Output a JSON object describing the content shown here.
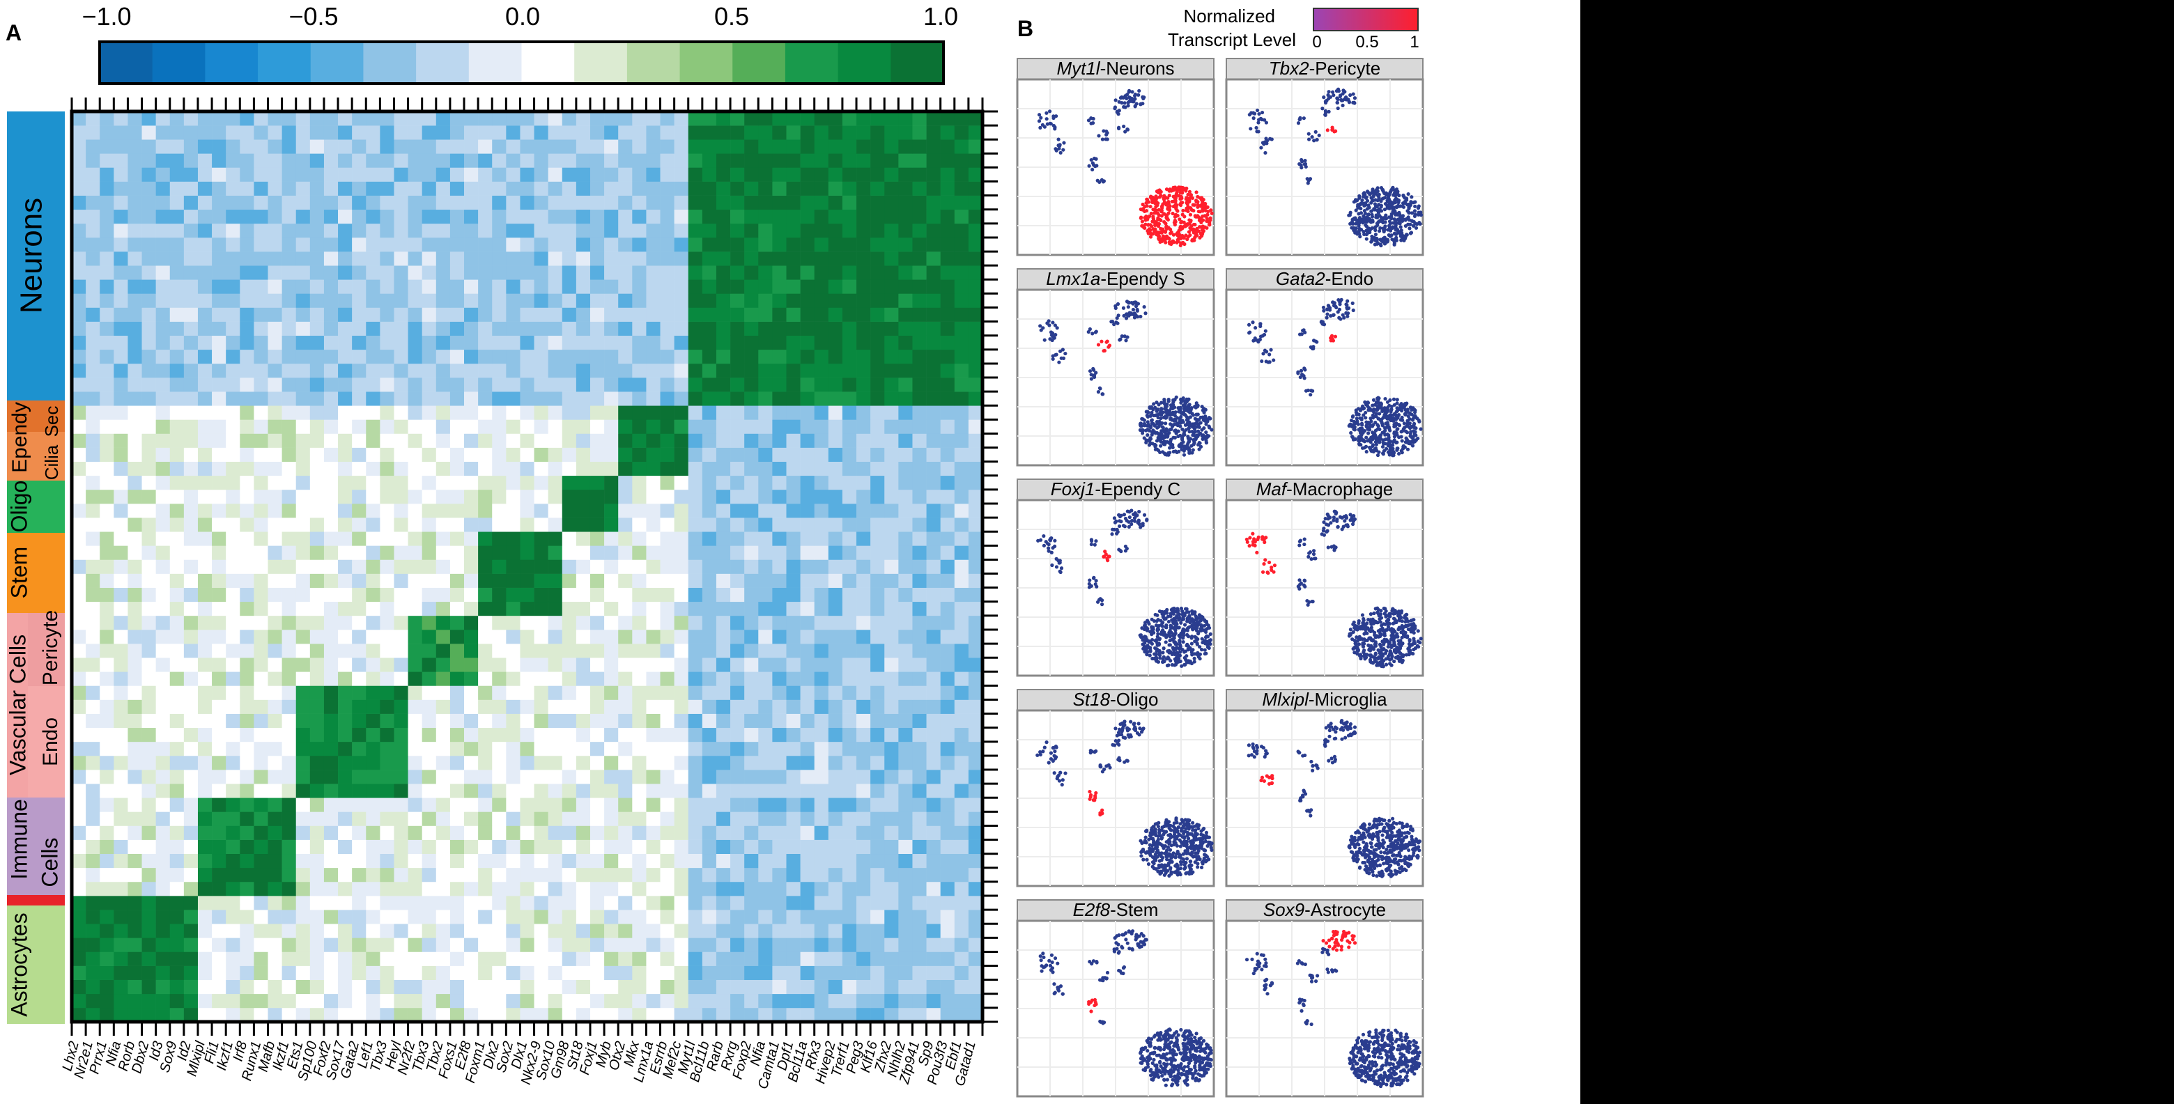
{
  "panel_a_label": "A",
  "panel_b_label": "B",
  "colorbar": {
    "ticks": [
      "−1.0",
      "−0.5",
      "0.0",
      "0.5",
      "1.0"
    ],
    "colors": [
      "#0c63a8",
      "#0a72bd",
      "#1887d0",
      "#2e9bd9",
      "#58aee0",
      "#8fc3e6",
      "#bcd7ef",
      "#e4ecf7",
      "#ffffff",
      "#dcebd2",
      "#b6d9a4",
      "#8cc77b",
      "#55ae58",
      "#199a4c",
      "#08893f",
      "#0b7234"
    ]
  },
  "groups": [
    {
      "label": "Neurons",
      "color": "#1d92cf"
    },
    {
      "label": "Ependy",
      "color": "#e2722c"
    },
    {
      "label": "Sec",
      "color": "#e2722c"
    },
    {
      "label": "Cilia",
      "color": "#ef8c4c"
    },
    {
      "label": "Oligo",
      "color": "#26b25a"
    },
    {
      "label": "Stem",
      "color": "#f7921e"
    },
    {
      "label": "Vascular Cells",
      "color": "#f3a4a5"
    },
    {
      "label": "Pericyte",
      "color": "#ee9ea0"
    },
    {
      "label": "Endo",
      "color": "#f5aaaa"
    },
    {
      "label": "Immune",
      "color": "#b99bc9"
    },
    {
      "label": "Cells",
      "color": "#b99bc9"
    },
    {
      "label": "Astrocytes",
      "color": "#b6dc8f"
    },
    {
      "label": "",
      "color": "#e8232a"
    }
  ],
  "gene_labels": [
    "Lhx2",
    "Nr2e1",
    "Prrx1",
    "Nfia",
    "Rorb",
    "Dbx2",
    "Id3",
    "Sox9",
    "Id2",
    "Mlxipl",
    "Fli1",
    "Ikzf1",
    "Irf8",
    "Runx1",
    "Mafb",
    "Ikzf1",
    "Ets1",
    "Sp100",
    "Foxf2",
    "Sox17",
    "Gata2",
    "Lef1",
    "Tbx3",
    "Heyl",
    "Nr2f2",
    "Tbx3",
    "Tbx2",
    "Foxs1",
    "E2f8",
    "Foxm1",
    "Dlx2",
    "Sox2",
    "Dlx1",
    "Nkx2-9",
    "Sox10",
    "Gm98",
    "St18",
    "Foxj1",
    "Myb",
    "Otx2",
    "Mkx",
    "Lmx1a",
    "Esrrb",
    "Mef2c",
    "Myt1l",
    "Bcl11b",
    "Rarb",
    "Rxrg",
    "Foxp2",
    "Nfia",
    "Camta1",
    "Dpf1",
    "Bcl11a",
    "Rfx3",
    "Hivep2",
    "Trerf1",
    "Peg3",
    "Klf16",
    "Zhx2",
    "Nhlh2",
    "Zfp941",
    "Sp9",
    "Pou3f3",
    "Ebf1",
    "Gatad1"
  ],
  "chart_data": {
    "type": "heatmap",
    "title": "",
    "xlabel": "",
    "ylabel": "",
    "value_range": [
      -1.0,
      1.0
    ],
    "n_genes": 65,
    "blocks": [
      {
        "group": "Neurons",
        "gene_range": [
          44,
          64
        ],
        "within_correlation": 0.85
      },
      {
        "group": "Ependy",
        "gene_range": [
          39,
          43
        ],
        "within_correlation": 0.85
      },
      {
        "group": "Oligo",
        "gene_range": [
          35,
          38
        ],
        "within_correlation": 0.9
      },
      {
        "group": "Stem",
        "gene_range": [
          29,
          34
        ],
        "within_correlation": 0.85
      },
      {
        "group": "Pericyte",
        "gene_range": [
          24,
          28
        ],
        "within_correlation": 0.7
      },
      {
        "group": "Endo",
        "gene_range": [
          16,
          23
        ],
        "within_correlation": 0.75
      },
      {
        "group": "Immune Cells",
        "gene_range": [
          9,
          15
        ],
        "within_correlation": 0.8
      },
      {
        "group": "Astrocytes",
        "gene_range": [
          0,
          8
        ],
        "within_correlation": 0.85
      }
    ],
    "between_group_correlation": {
      "neurons_vs_others": -0.3,
      "others_vs_others": 0.0
    }
  },
  "panel_b": {
    "legend_title_1": "Normalized",
    "legend_title_2": "Transcript Level",
    "legend_ticks": [
      "0",
      "0.5",
      "1"
    ],
    "legend_colors": [
      "#9b45b4",
      "#ff1f2d"
    ],
    "point_color": "#2a3d8f",
    "facets": [
      {
        "italic": "Myt1l",
        "rest": "-Neurons",
        "highlight": "neurons"
      },
      {
        "italic": "Tbx2",
        "rest": "-Pericyte",
        "highlight": "pericyte"
      },
      {
        "italic": "Lmx1a",
        "rest": "-Ependy S",
        "highlight": "ependy"
      },
      {
        "italic": "Gata2",
        "rest": "-Endo",
        "highlight": "endo"
      },
      {
        "italic": "Foxj1",
        "rest": "-Ependy C",
        "highlight": "ependyc"
      },
      {
        "italic": "Maf",
        "rest": "-Macrophage",
        "highlight": "macro"
      },
      {
        "italic": "St18",
        "rest": "-Oligo",
        "highlight": "oligo"
      },
      {
        "italic": "Mlxipl",
        "rest": "-Microglia",
        "highlight": "micro"
      },
      {
        "italic": "E2f8",
        "rest": "-Stem",
        "highlight": "stem"
      },
      {
        "italic": "Sox9",
        "rest": "-Astrocyte",
        "highlight": "astro"
      }
    ]
  }
}
